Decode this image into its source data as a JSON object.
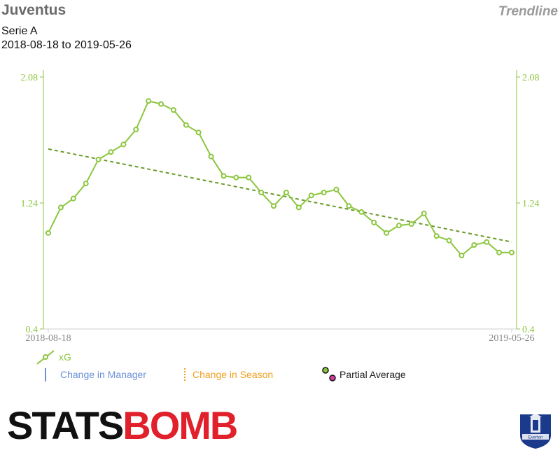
{
  "header": {
    "team": "Juventus",
    "kind": "Trendline",
    "league": "Serie A",
    "date_range": "2018-08-18 to 2019-05-26"
  },
  "chart_data": {
    "type": "line",
    "title": "Juventus",
    "ylim": [
      0.4,
      2.08
    ],
    "y_ticks": [
      "0.4",
      "1.24",
      "2.08"
    ],
    "x_ticks": [
      "2018-08-18",
      "2019-05-26"
    ],
    "grid": false,
    "legend_placement": "bottom-left",
    "series": [
      {
        "name": "xG",
        "color": "#8cc63f",
        "values": [
          1.04,
          1.21,
          1.27,
          1.37,
          1.53,
          1.58,
          1.63,
          1.73,
          1.92,
          1.9,
          1.86,
          1.76,
          1.71,
          1.55,
          1.42,
          1.41,
          1.41,
          1.31,
          1.22,
          1.31,
          1.21,
          1.29,
          1.31,
          1.33,
          1.22,
          1.18,
          1.11,
          1.04,
          1.09,
          1.1,
          1.17,
          1.02,
          0.99,
          0.89,
          0.96,
          0.98,
          0.91,
          0.91
        ]
      }
    ],
    "trendline": {
      "color": "#6a9a2a",
      "start": 1.6,
      "end": 0.98
    }
  },
  "legend": {
    "xg": "xG",
    "manager": "Change in Manager",
    "season": "Change in Season",
    "partial": "Partial Average"
  },
  "colors": {
    "accent": "#8cc63f",
    "manager": "#6a8fd6",
    "season": "#f0a020",
    "brand_red": "#e0202a"
  },
  "logo": {
    "part1": "STATS",
    "part2": "BOMB"
  },
  "crest": {
    "name": "Everton"
  }
}
